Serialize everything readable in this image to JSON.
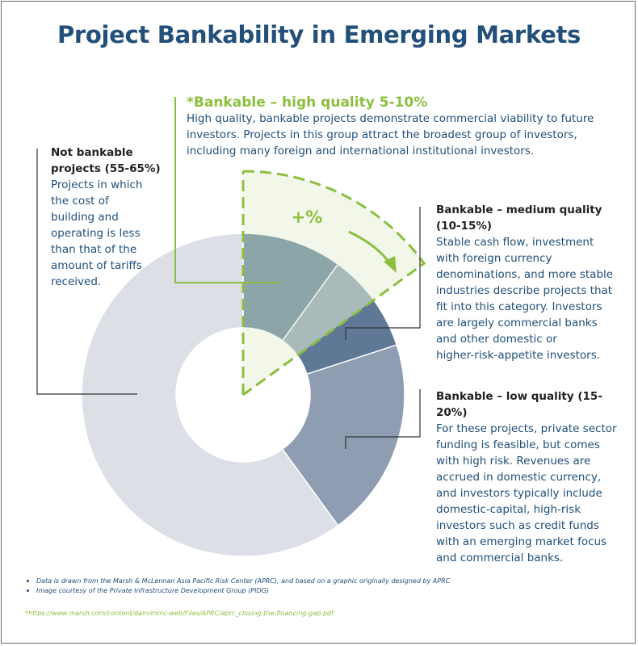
{
  "title": "Project Bankability in Emerging Markets",
  "colors": {
    "title": "#23507a",
    "accent_green": "#8cbf3f",
    "green_fill": "#e7f1d8",
    "text_blue": "#1f4f7a",
    "slice_high": "#1d4a70",
    "slice_medium": "#5e7896",
    "slice_low": "#8e9db2",
    "slice_not": "#dcdfe6"
  },
  "high_quality": {
    "title": "*Bankable – high quality 5-10%",
    "description_lines": [
      "High quality, bankable projects demonstrate commercial viability to future",
      "investors. Projects in this group attract the broadest group of investors,",
      "including many foreign and international institutional investors."
    ]
  },
  "not_bankable": {
    "head_lines": [
      "Not bankable",
      "projects (55-65%)"
    ],
    "body_lines": [
      "Projects in which",
      "the cost of",
      "building and",
      "operating is less",
      "than that of the",
      "amount of tariffs",
      "received."
    ]
  },
  "medium_quality": {
    "head_lines": [
      "Bankable – medium quality",
      "(10-15%)"
    ],
    "body_lines": [
      "Stable cash flow, investment",
      "with foreign currency",
      "denominations, and more stable",
      "industries describe projects that",
      "fit into this category. Investors",
      "are largely commercial banks",
      "and other domestic or",
      "higher-risk-appetite investors."
    ]
  },
  "low_quality": {
    "head_lines": [
      "Bankable – low quality (15-20%)"
    ],
    "body_lines": [
      "For these projects, private sector",
      "funding is feasible, but comes",
      "with high risk. Revenues are",
      "accrued in domestic currency,",
      "and investors typically include",
      "domestic-capital, high-risk",
      "investors such as credit funds",
      "with an emerging market focus",
      "and commercial banks."
    ]
  },
  "plus_label": "+%",
  "notes": [
    "Data is drawn from the Marsh & McLennan Asia Pacific Risk Center (APRC), and based on a graphic originally designed by APRC",
    "Image courtesy of the Private Infrastructure Development Group (PIDG)"
  ],
  "source": "*https://www.marsh.com/content/dam/mmc-web/Files/APRC/aprc_closing-the-financing-gap.pdf",
  "chart_data": {
    "type": "pie",
    "donut": true,
    "title": "Project Bankability in Emerging Markets",
    "categories": [
      "Bankable – high quality 5-10%",
      "Bankable – medium quality (10-15%)",
      "Bankable – low quality (15-20%)",
      "Not bankable projects (55-65%)"
    ],
    "values": [
      10,
      10,
      20,
      60
    ],
    "highlight_wedge": {
      "label": "+%",
      "values": [
        15
      ]
    }
  }
}
